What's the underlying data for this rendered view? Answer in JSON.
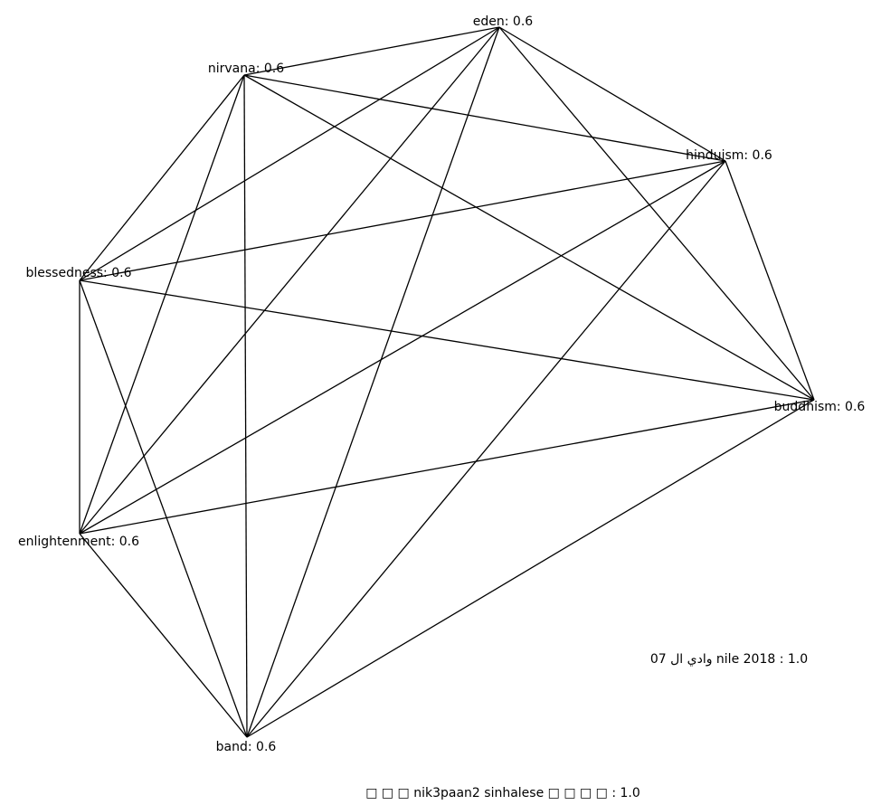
{
  "nodes": [
    {
      "id": "eden",
      "label": "eden: 0.6"
    },
    {
      "id": "nirvana",
      "label": "nirvana: 0.6"
    },
    {
      "id": "hinduism",
      "label": "hinduism: 0.6"
    },
    {
      "id": "blessedness",
      "label": "blessedness: 0.6"
    },
    {
      "id": "buddhism",
      "label": "buddhism: 0.6"
    },
    {
      "id": "enlightenment",
      "label": "enlightenment: 0.6"
    },
    {
      "id": "band",
      "label": "band: 0.6"
    },
    {
      "id": "nile",
      "label": "07 وادي ال nile 2018 : 1.0"
    },
    {
      "id": "sinhalese",
      "label": "□ □ □ nik3paan2 sinhalese □ □ □ □ : 1.0"
    }
  ],
  "edges": [
    [
      "eden",
      "nirvana"
    ],
    [
      "eden",
      "hinduism"
    ],
    [
      "eden",
      "blessedness"
    ],
    [
      "eden",
      "buddhism"
    ],
    [
      "eden",
      "enlightenment"
    ],
    [
      "eden",
      "band"
    ],
    [
      "nirvana",
      "hinduism"
    ],
    [
      "nirvana",
      "blessedness"
    ],
    [
      "nirvana",
      "buddhism"
    ],
    [
      "nirvana",
      "enlightenment"
    ],
    [
      "nirvana",
      "band"
    ],
    [
      "hinduism",
      "blessedness"
    ],
    [
      "hinduism",
      "buddhism"
    ],
    [
      "hinduism",
      "enlightenment"
    ],
    [
      "hinduism",
      "band"
    ],
    [
      "blessedness",
      "buddhism"
    ],
    [
      "blessedness",
      "enlightenment"
    ],
    [
      "blessedness",
      "band"
    ],
    [
      "buddhism",
      "enlightenment"
    ],
    [
      "buddhism",
      "band"
    ],
    [
      "enlightenment",
      "band"
    ]
  ],
  "colors": {
    "edge": "#000000",
    "text": "#000000"
  }
}
